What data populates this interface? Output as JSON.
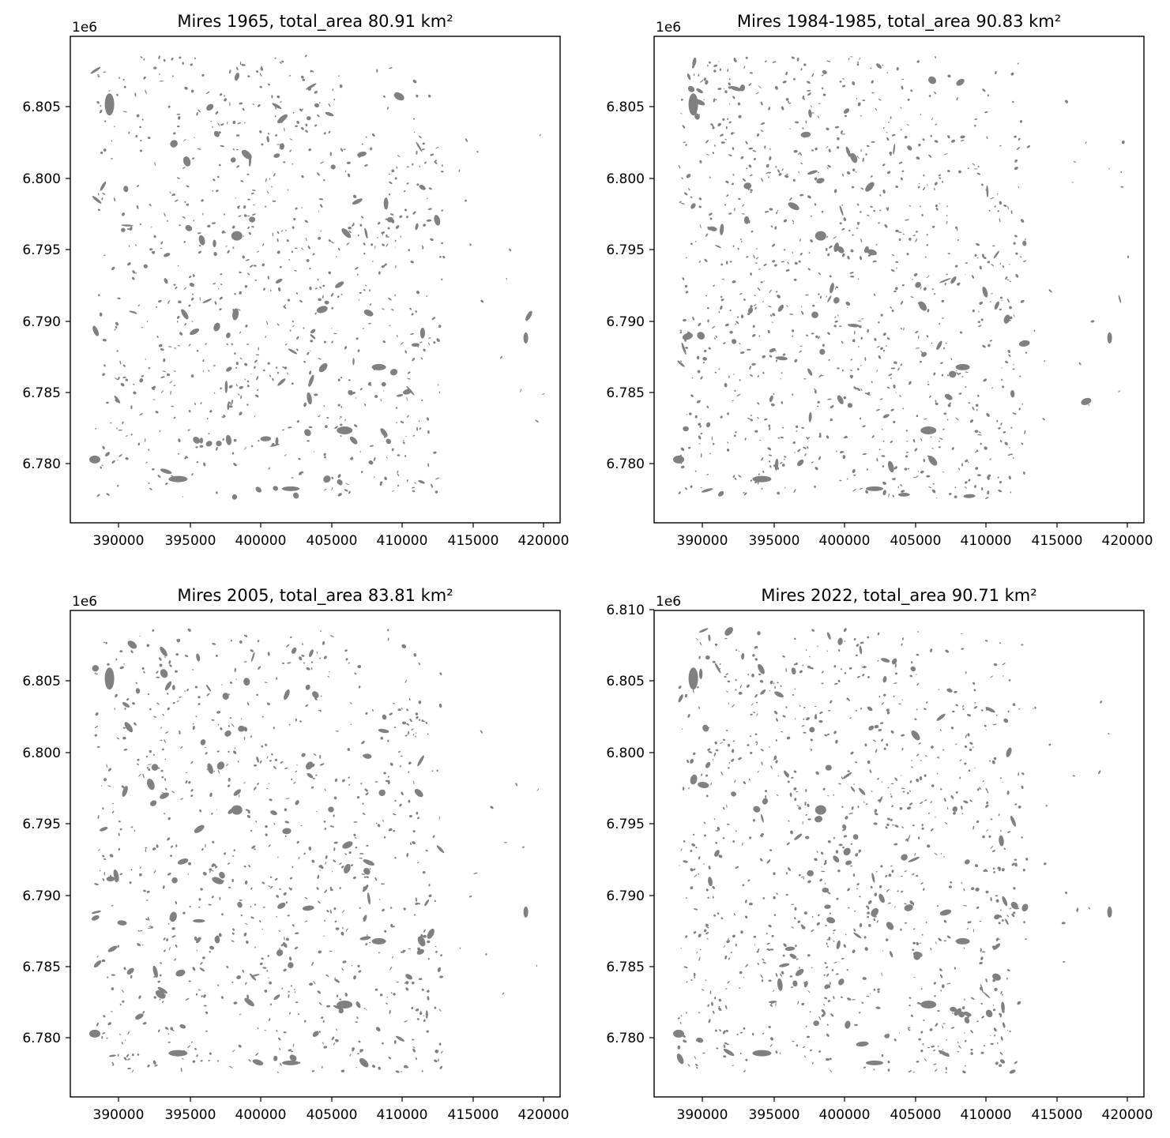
{
  "figure": {
    "fill_color": "#808080",
    "background": "#ffffff"
  },
  "panels": [
    {
      "title": "Mires 1965, total_area 80.91 km²",
      "offset_label": "1e6",
      "x_ticks": [
        "390000",
        "395000",
        "400000",
        "405000",
        "410000",
        "415000",
        "420000"
      ],
      "y_ticks": [
        "6.780",
        "6.785",
        "6.790",
        "6.795",
        "6.800",
        "6.805"
      ]
    },
    {
      "title": "Mires 1984-1985, total_area 90.83 km²",
      "offset_label": "1e6",
      "x_ticks": [
        "390000",
        "395000",
        "400000",
        "405000",
        "410000",
        "415000",
        "420000"
      ],
      "y_ticks": [
        "6.780",
        "6.785",
        "6.790",
        "6.795",
        "6.800",
        "6.805"
      ]
    },
    {
      "title": "Mires 2005, total_area 83.81 km²",
      "offset_label": "1e6",
      "x_ticks": [
        "390000",
        "395000",
        "400000",
        "405000",
        "410000",
        "415000",
        "420000"
      ],
      "y_ticks": [
        "6.780",
        "6.785",
        "6.790",
        "6.795",
        "6.800",
        "6.805"
      ]
    },
    {
      "title": "Mires 2022, total_area 90.71 km²",
      "offset_label": "1e6",
      "x_ticks": [
        "390000",
        "395000",
        "400000",
        "405000",
        "410000",
        "415000",
        "420000"
      ],
      "y_ticks": [
        "6.780",
        "6.785",
        "6.790",
        "6.795",
        "6.800",
        "6.805",
        "6.810"
      ]
    }
  ]
}
